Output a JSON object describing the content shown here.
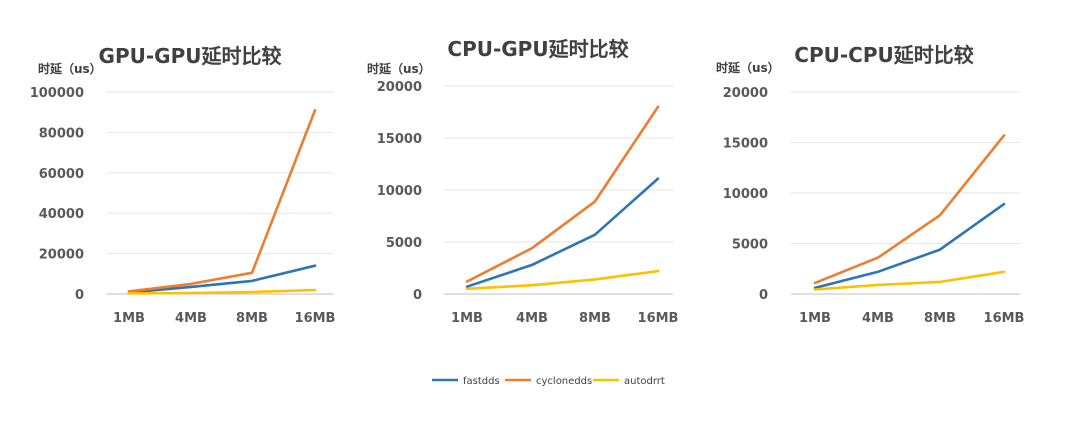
{
  "legend": [
    {
      "name": "fastdds",
      "color": "#2e75b6"
    },
    {
      "name": "cyclonedds",
      "color": "#ed7d31"
    },
    {
      "name": "autodrrt",
      "color": "#ffc000"
    }
  ],
  "chart_data": [
    {
      "type": "line",
      "title": "GPU-GPU延时比较",
      "ylabel": "时延（us）",
      "xlabel": "",
      "categories": [
        "1MB",
        "4MB",
        "8MB",
        "16MB"
      ],
      "ylim": [
        0,
        100000
      ],
      "yticks": [
        0,
        20000,
        40000,
        60000,
        80000,
        100000
      ],
      "grid": true,
      "legend_position": "bottom",
      "series": [
        {
          "name": "fastdds",
          "values": [
            800,
            3500,
            6500,
            14000
          ]
        },
        {
          "name": "cyclonedds",
          "values": [
            1300,
            5000,
            10500,
            91000
          ]
        },
        {
          "name": "autodrrt",
          "values": [
            300,
            500,
            1000,
            2000
          ]
        }
      ]
    },
    {
      "type": "line",
      "title": "CPU-GPU延时比较",
      "ylabel": "时延（us）",
      "xlabel": "",
      "categories": [
        "1MB",
        "4MB",
        "8MB",
        "16MB"
      ],
      "ylim": [
        0,
        20000
      ],
      "yticks": [
        0,
        5000,
        10000,
        15000,
        20000
      ],
      "grid": true,
      "legend_position": "bottom",
      "series": [
        {
          "name": "fastdds",
          "values": [
            700,
            2800,
            5700,
            11100
          ]
        },
        {
          "name": "cyclonedds",
          "values": [
            1200,
            4400,
            8900,
            18000
          ]
        },
        {
          "name": "autodrrt",
          "values": [
            500,
            850,
            1400,
            2200
          ]
        }
      ]
    },
    {
      "type": "line",
      "title": "CPU-CPU延时比较",
      "ylabel": "时延（us）",
      "xlabel": "",
      "categories": [
        "1MB",
        "4MB",
        "8MB",
        "16MB"
      ],
      "ylim": [
        0,
        20000
      ],
      "yticks": [
        0,
        5000,
        10000,
        15000,
        20000
      ],
      "grid": true,
      "legend_position": "bottom",
      "series": [
        {
          "name": "fastdds",
          "values": [
            600,
            2200,
            4400,
            8900
          ]
        },
        {
          "name": "cyclonedds",
          "values": [
            1100,
            3600,
            7800,
            15700
          ]
        },
        {
          "name": "autodrrt",
          "values": [
            450,
            900,
            1200,
            2200
          ]
        }
      ]
    }
  ]
}
